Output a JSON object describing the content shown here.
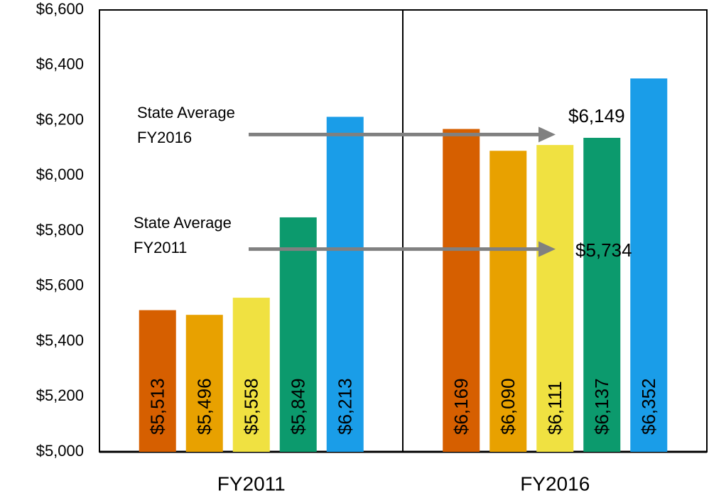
{
  "chart_data": {
    "type": "bar",
    "categories": [
      "FY2011",
      "FY2016"
    ],
    "series": [
      {
        "color": "#d65f00",
        "values": [
          5513,
          6169
        ],
        "value_labels": [
          "$5,513",
          "$6,169"
        ]
      },
      {
        "color": "#e8a100",
        "values": [
          5496,
          6090
        ],
        "value_labels": [
          "$5,496",
          "$6,090"
        ]
      },
      {
        "color": "#f0e141",
        "values": [
          5558,
          6111
        ],
        "value_labels": [
          "$5,558",
          "$6,111"
        ]
      },
      {
        "color": "#0c9a6d",
        "values": [
          5849,
          6137
        ],
        "value_labels": [
          "$5,849",
          "$6,137"
        ]
      },
      {
        "color": "#1a9de8",
        "values": [
          6213,
          6352
        ],
        "value_labels": [
          "$6,213",
          "$6,352"
        ]
      }
    ],
    "ylim": [
      5000,
      6600
    ],
    "yticks": [
      {
        "value": 5000,
        "label": "$5,000"
      },
      {
        "value": 5200,
        "label": "$5,200"
      },
      {
        "value": 5400,
        "label": "$5,400"
      },
      {
        "value": 5600,
        "label": "$5,600"
      },
      {
        "value": 5800,
        "label": "$5,800"
      },
      {
        "value": 6000,
        "label": "$6,000"
      },
      {
        "value": 6200,
        "label": "$6,200"
      },
      {
        "value": 6400,
        "label": "$6,400"
      },
      {
        "value": 6600,
        "label": "$6,600"
      }
    ],
    "grid": false,
    "annotations": [
      {
        "lines": [
          "State Average",
          "FY2016"
        ],
        "value": 6149,
        "label": "$6,149",
        "color": "#808080"
      },
      {
        "lines": [
          "State Average",
          "FY2011"
        ],
        "value": 5734,
        "label": "$5,734",
        "color": "#808080"
      }
    ]
  }
}
